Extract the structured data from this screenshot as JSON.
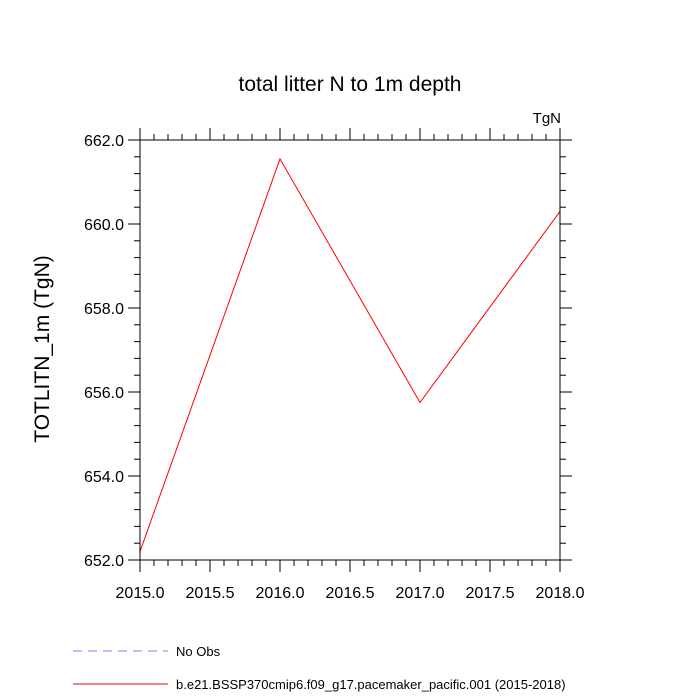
{
  "chart_data": {
    "type": "line",
    "title": "total litter N to 1m depth",
    "units_label": "TgN",
    "xlabel": "",
    "ylabel": "TOTLITN_1m  (TgN)",
    "xlim": [
      2015.0,
      2018.0
    ],
    "ylim": [
      652.0,
      662.0
    ],
    "x_ticks": [
      2015.0,
      2015.5,
      2016.0,
      2016.5,
      2017.0,
      2017.5,
      2018.0
    ],
    "x_tick_labels": [
      "2015.0",
      "2015.5",
      "2016.0",
      "2016.5",
      "2017.0",
      "2017.5",
      "2018.0"
    ],
    "y_ticks": [
      652.0,
      654.0,
      656.0,
      658.0,
      660.0,
      662.0
    ],
    "y_tick_labels": [
      "652.0",
      "654.0",
      "656.0",
      "658.0",
      "660.0",
      "662.0"
    ],
    "x_minor_step": 0.1,
    "y_minor_step": 0.4,
    "grid": false,
    "legend_position": "bottom",
    "series": [
      {
        "name": "No Obs",
        "color": "#8080ff",
        "dash": "dashed",
        "x": [],
        "values": []
      },
      {
        "name": "b.e21.BSSP370cmip6.f09_g17.pacemaker_pacific.001 (2015-2018)",
        "color": "#ff0000",
        "dash": "solid",
        "x": [
          2015,
          2016,
          2017,
          2018
        ],
        "values": [
          652.2,
          661.55,
          655.75,
          660.3
        ]
      }
    ]
  }
}
